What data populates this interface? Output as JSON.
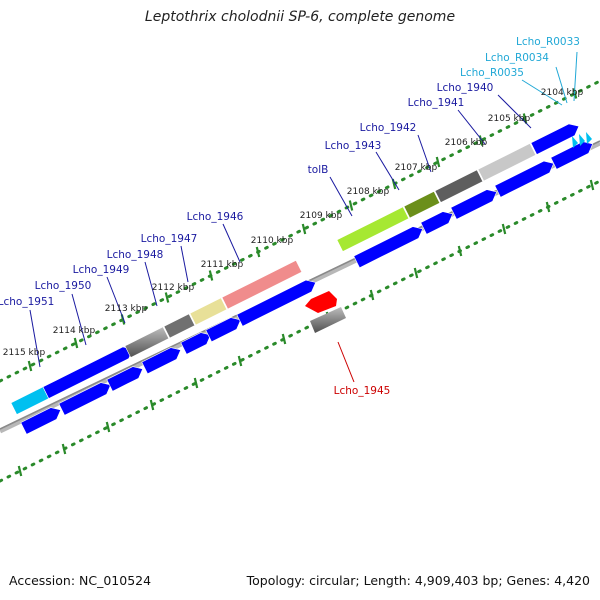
{
  "title": "Leptothrix cholodnii SP-6, complete genome",
  "footer": {
    "accession": "Accession: NC_010524",
    "stats": "Topology: circular; Length: 4,909,403 bp; Genes: 4,420"
  },
  "colors": {
    "gene": "#0000ff",
    "selected_gene": "#ff0000",
    "rna_gene": "#00c0f0",
    "gene_label": "#1a1aa0",
    "rna_label": "#21a8d6",
    "selected_label": "#cc0000",
    "tick": "#2a8a2a",
    "backbone": "#999999"
  },
  "kbp_ticks": [
    "2104 kbp",
    "2105 kbp",
    "2106 kbp",
    "2107 kbp",
    "2108 kbp",
    "2109 kbp",
    "2110 kbp",
    "2111 kbp",
    "2112 kbp",
    "2113 kbp",
    "2114 kbp",
    "2115 kbp"
  ],
  "gene_labels": [
    {
      "text": "Lcho_R0033",
      "kind": "rna"
    },
    {
      "text": "Lcho_R0034",
      "kind": "rna"
    },
    {
      "text": "Lcho_R0035",
      "kind": "rna"
    },
    {
      "text": "Lcho_1940",
      "kind": "gene"
    },
    {
      "text": "Lcho_1941",
      "kind": "gene"
    },
    {
      "text": "Lcho_1942",
      "kind": "gene"
    },
    {
      "text": "Lcho_1943",
      "kind": "gene"
    },
    {
      "text": "tolB",
      "kind": "gene"
    },
    {
      "text": "Lcho_1946",
      "kind": "gene"
    },
    {
      "text": "Lcho_1947",
      "kind": "gene"
    },
    {
      "text": "Lcho_1948",
      "kind": "gene"
    },
    {
      "text": "Lcho_1949",
      "kind": "gene"
    },
    {
      "text": "Lcho_1950",
      "kind": "gene"
    },
    {
      "text": "Lcho_1951",
      "kind": "gene"
    },
    {
      "text": "Lcho_1945",
      "kind": "selected"
    }
  ]
}
